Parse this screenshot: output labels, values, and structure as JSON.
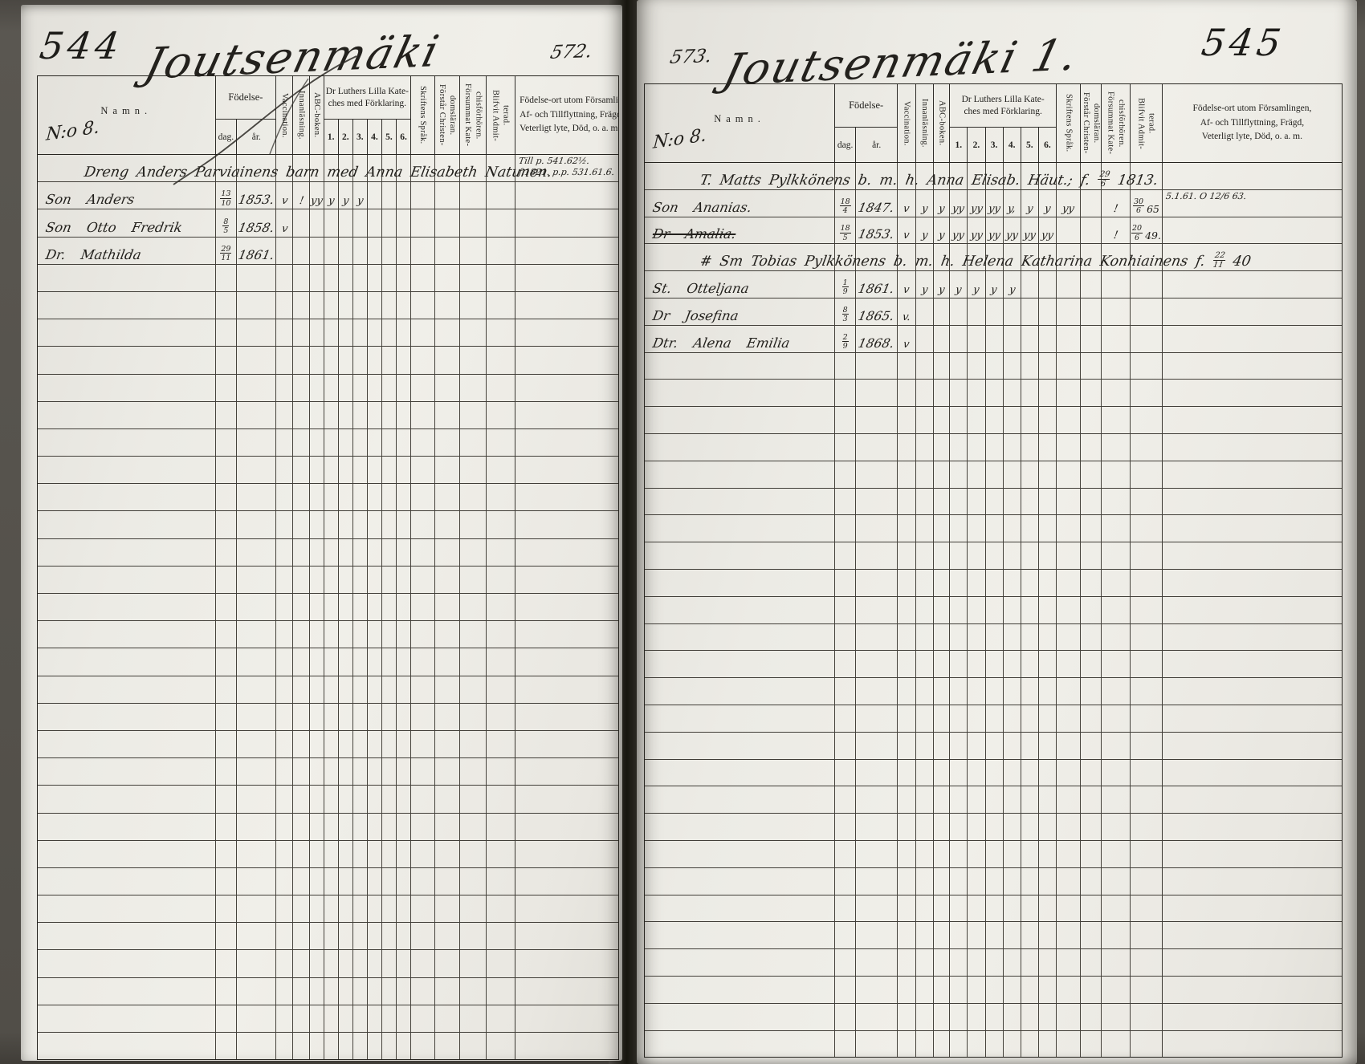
{
  "header_labels": {
    "namn": "Namn.",
    "fodelse": "Födelse-",
    "dag": "dag.",
    "ar": "år.",
    "vaccination": "Vaccination.",
    "innanlasning": "Innanläsning.",
    "abc_boken": "ABC-boken.",
    "kateches_line1": "Dr Luthers Lilla Kate-",
    "kateches_line2": "ches med Förklaring.",
    "kateches_numbers": [
      "1.",
      "2.",
      "3.",
      "4.",
      "5.",
      "6."
    ],
    "skriftens_sprak": "Skriftens Språk.",
    "forstar_line1": "Förstår Christen-",
    "forstar_line2": "domsläran.",
    "forsummat_line1": "Försummat Kate-",
    "forsummat_line2": "chisförhören.",
    "blifvit_line1": "Blifvit Admit-",
    "blifvit_line2": "terad.",
    "fodelseort_line1": "Födelse-ort utom Församlingen,",
    "fodelseort_line2": "Af- och Tillflyttning, Frägd,",
    "fodelseort_line3": "Veterligt lyte, Död, o. a. m."
  },
  "row_count": 33,
  "left_page": {
    "printed_page_number": "544",
    "written_folio_number": "572.",
    "title": "Joutsenmäki",
    "no_label": "N:o 8.",
    "rows": [
      {
        "span": "Dreng Anders Parviainens barn med Anna Elisabeth Natunen.",
        "note1": "Till p. 541.62½.",
        "note2": "f.1821. p.p. 531.61.6."
      },
      {
        "name": "Son Anders",
        "dag": "13/10",
        "ar": "1853.",
        "marks": [
          "v",
          "!",
          "yy",
          "y",
          "y",
          "y",
          "",
          "",
          "",
          "",
          "",
          ""
        ]
      },
      {
        "name": "Son Otto Fredrik",
        "dag": "8/5",
        "ar": "1858.",
        "marks": [
          "v",
          "",
          "",
          "",
          "",
          "",
          "",
          "",
          "",
          "",
          "",
          ""
        ]
      },
      {
        "name": "Dr. Mathilda",
        "dag": "29/11",
        "ar": "1861.",
        "marks": [
          "",
          "",
          "",
          "",
          "",
          "",
          "",
          "",
          "",
          "",
          "",
          ""
        ]
      }
    ]
  },
  "right_page": {
    "printed_page_number": "545",
    "written_folio_number": "573.",
    "title": "Joutsenmäki 1.",
    "no_label": "N:o 8.",
    "rows": [
      {
        "span": "T. Matts Pylkkönens b. m. h. Anna Elisab. Häut.; f. 29/6 1813."
      },
      {
        "name": "Son Ananias.",
        "dag": "18/4",
        "ar": "1847.",
        "marks": [
          "v",
          "y",
          "y",
          "yy",
          "yy",
          "yy",
          "y,",
          "y",
          "y",
          "yy",
          "",
          "!"
        ],
        "blifvit": "30/6 65",
        "note1": "5.1.61. O 12/6 63."
      },
      {
        "name": "Dr Amalia.",
        "strike": true,
        "dag": "18/5",
        "ar": "1853.",
        "marks": [
          "v",
          "y",
          "y",
          "yy",
          "yy",
          "yy",
          "yy",
          "yy",
          "yy",
          "",
          "",
          "!"
        ],
        "blifvit": "20/6 49."
      },
      {
        "span": "# Sm Tobias Pylkkönens b. m. h. Helena Katharina Konhiainens f. 22/11 40"
      },
      {
        "name": "St. Otteljana",
        "dag": "1/9",
        "ar": "1861.",
        "marks": [
          "v",
          "y",
          "y",
          "y",
          "y",
          "y",
          "y",
          "",
          "",
          "",
          "",
          ""
        ]
      },
      {
        "name": "Dr Josefina",
        "dag": "8/3",
        "ar": "1865.",
        "marks": [
          "v.",
          "",
          "",
          "",
          "",
          "",
          "",
          "",
          "",
          "",
          "",
          ""
        ]
      },
      {
        "name": "Dtr. Alena Emilia",
        "dag": "2/9",
        "ar": "1868.",
        "marks": [
          "v",
          "",
          "",
          "",
          "",
          "",
          "",
          "",
          "",
          "",
          "",
          ""
        ]
      }
    ]
  }
}
